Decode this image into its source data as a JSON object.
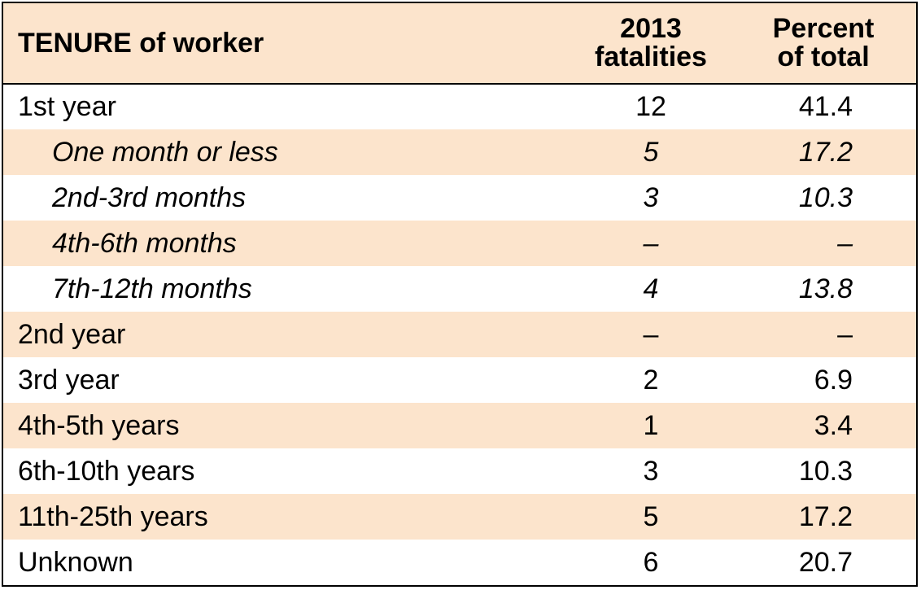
{
  "colors": {
    "header_bg": "#fce4cc",
    "band_bg": "#fce4cc",
    "plain_bg": "#ffffff",
    "border": "#000000"
  },
  "header": {
    "tenure": "TENURE of worker",
    "fatalities_line1": "2013",
    "fatalities_line2": "fatalities",
    "percent_line1": "Percent",
    "percent_line2": "of total"
  },
  "rows": [
    {
      "label": "1st year",
      "fatalities": "12",
      "percent": "41.4",
      "sub": false,
      "shaded": false
    },
    {
      "label": "One month or less",
      "fatalities": "5",
      "percent": "17.2",
      "sub": true,
      "shaded": true
    },
    {
      "label": "2nd-3rd months",
      "fatalities": "3",
      "percent": "10.3",
      "sub": true,
      "shaded": false
    },
    {
      "label": "4th-6th months",
      "fatalities": "–",
      "percent": "–",
      "sub": true,
      "shaded": true
    },
    {
      "label": "7th-12th months",
      "fatalities": "4",
      "percent": "13.8",
      "sub": true,
      "shaded": false
    },
    {
      "label": "2nd year",
      "fatalities": "–",
      "percent": "–",
      "sub": false,
      "shaded": true
    },
    {
      "label": "3rd year",
      "fatalities": "2",
      "percent": "6.9",
      "sub": false,
      "shaded": false
    },
    {
      "label": "4th-5th years",
      "fatalities": "1",
      "percent": "3.4",
      "sub": false,
      "shaded": true
    },
    {
      "label": "6th-10th years",
      "fatalities": "3",
      "percent": "10.3",
      "sub": false,
      "shaded": false
    },
    {
      "label": "11th-25th years",
      "fatalities": "5",
      "percent": "17.2",
      "sub": false,
      "shaded": true
    },
    {
      "label": "Unknown",
      "fatalities": "6",
      "percent": "20.7",
      "sub": false,
      "shaded": false
    }
  ]
}
